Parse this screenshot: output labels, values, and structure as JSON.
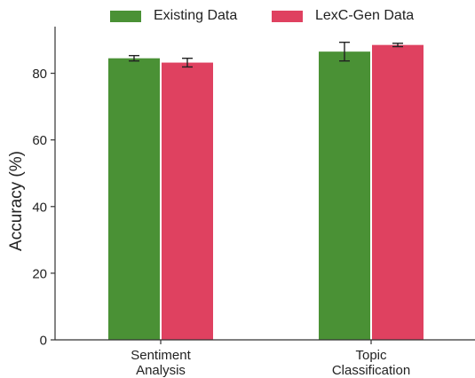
{
  "chart_data": {
    "type": "bar",
    "title": "",
    "xlabel": "",
    "ylabel": "Accuracy (%)",
    "ylim": [
      0,
      94
    ],
    "yticks": [
      0,
      20,
      40,
      60,
      80
    ],
    "grid": false,
    "legend_position": "top-center",
    "categories": [
      [
        "Sentiment",
        "Analysis"
      ],
      [
        "Topic",
        "Classification"
      ]
    ],
    "series": [
      {
        "name": "Existing Data",
        "color": "#4a9135",
        "values": [
          84.5,
          86.5
        ],
        "errors": [
          0.8,
          2.8
        ]
      },
      {
        "name": "LexC-Gen Data",
        "color": "#df4160",
        "values": [
          83.2,
          88.5
        ],
        "errors": [
          1.3,
          0.5
        ]
      }
    ]
  }
}
